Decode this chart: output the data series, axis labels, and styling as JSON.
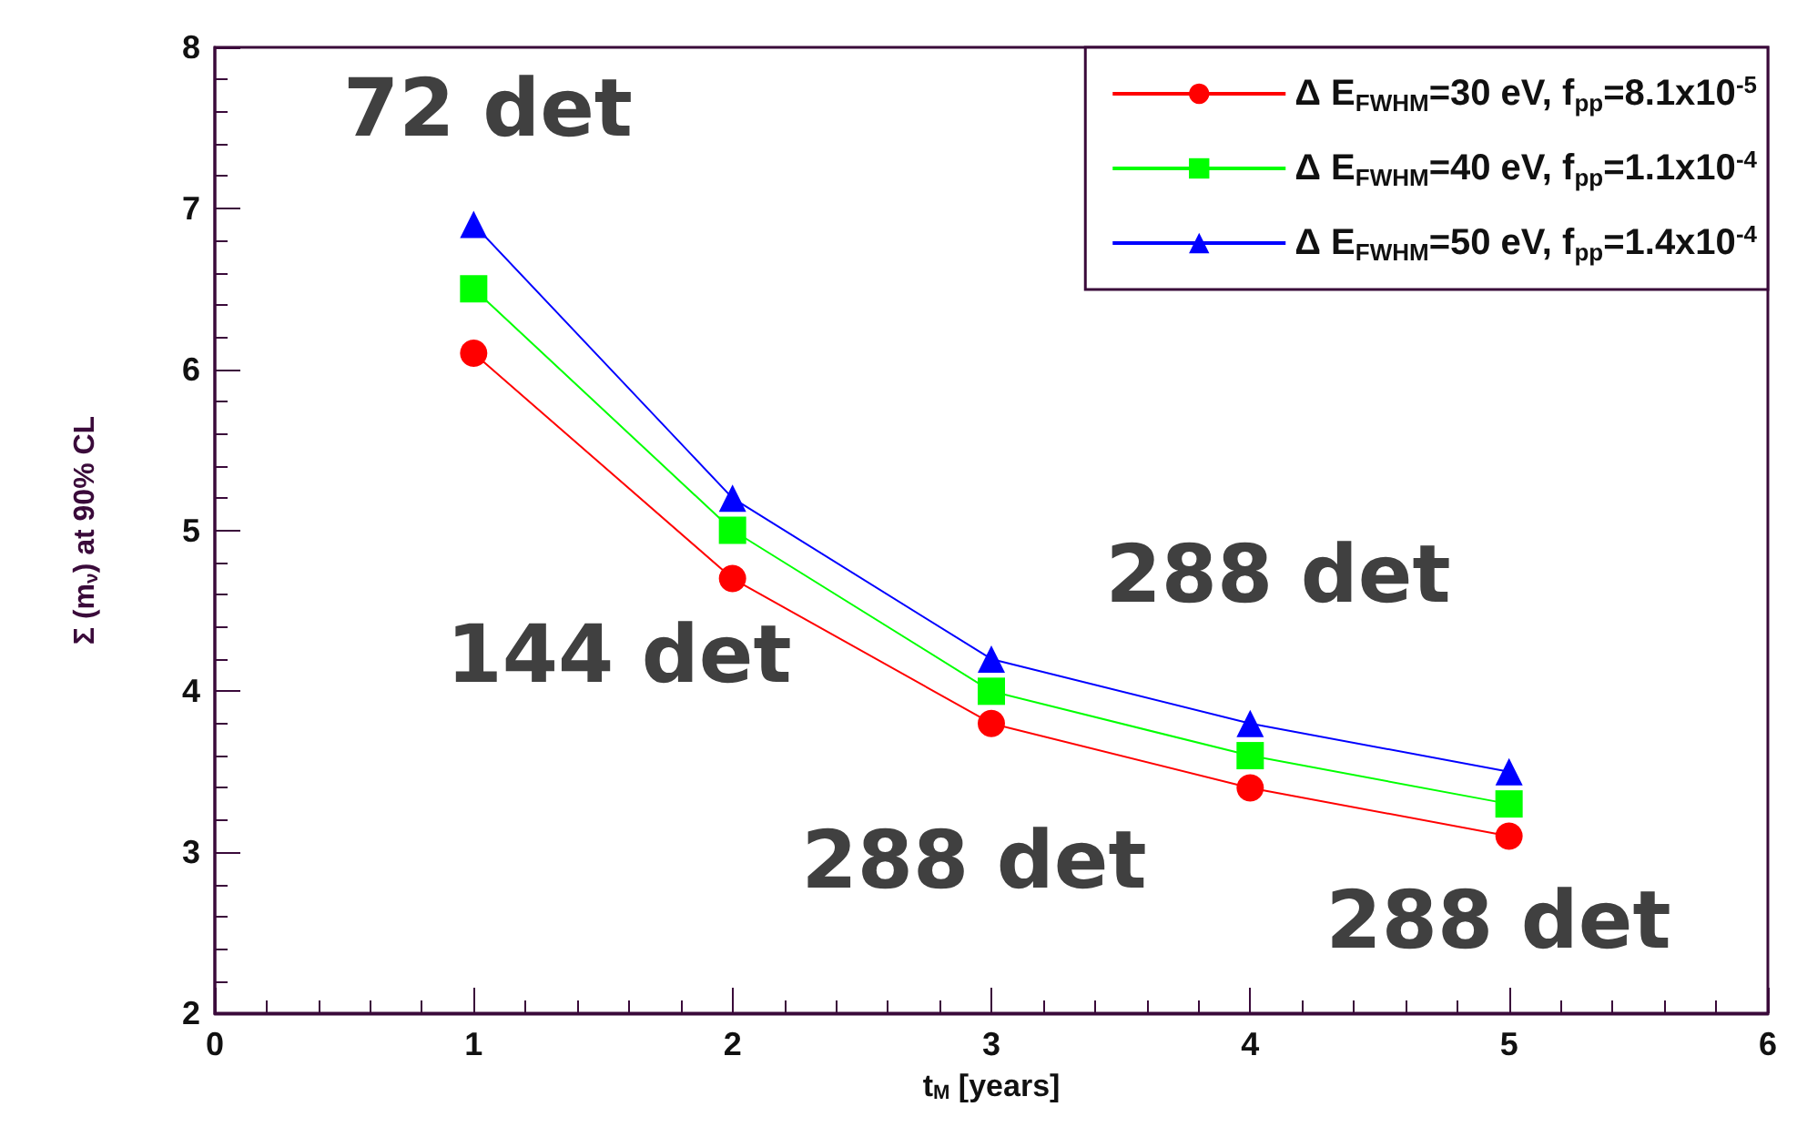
{
  "chart_data": {
    "type": "line",
    "xlabel": "t$_{M}$ [years]",
    "ylabel": "Σ (m$_{ν}$) at 90% CL",
    "x": [
      1,
      2,
      3,
      4,
      5
    ],
    "series": [
      {
        "name": "Δ E$_{FWHM}$=30 eV, f$_{pp}$=8.1x10$^{-5}$",
        "color": "#ff0000",
        "marker": "circle",
        "values": [
          6.1,
          4.7,
          3.8,
          3.4,
          3.1
        ]
      },
      {
        "name": "Δ E$_{FWHM}$=40 eV, f$_{pp}$=1.1x10$^{-4}$",
        "color": "#00ff00",
        "marker": "square",
        "values": [
          6.5,
          5.0,
          4.0,
          3.6,
          3.3
        ]
      },
      {
        "name": "Δ E$_{FWHM}$=50 eV, f$_{pp}$=1.4x10$^{-4}$",
        "color": "#0000ff",
        "marker": "triangle",
        "values": [
          6.9,
          5.2,
          4.2,
          3.8,
          3.5
        ]
      }
    ],
    "xlim": [
      0,
      6
    ],
    "xticks": [
      0,
      1,
      2,
      3,
      4,
      5,
      6
    ],
    "ylim": [
      2,
      8
    ],
    "yticks": [
      2,
      3,
      4,
      5,
      6,
      7,
      8
    ],
    "grid": false,
    "legend": "top right",
    "annotations": [
      "72 det",
      "144 det",
      "288 det",
      "288 det",
      "288 det"
    ]
  }
}
